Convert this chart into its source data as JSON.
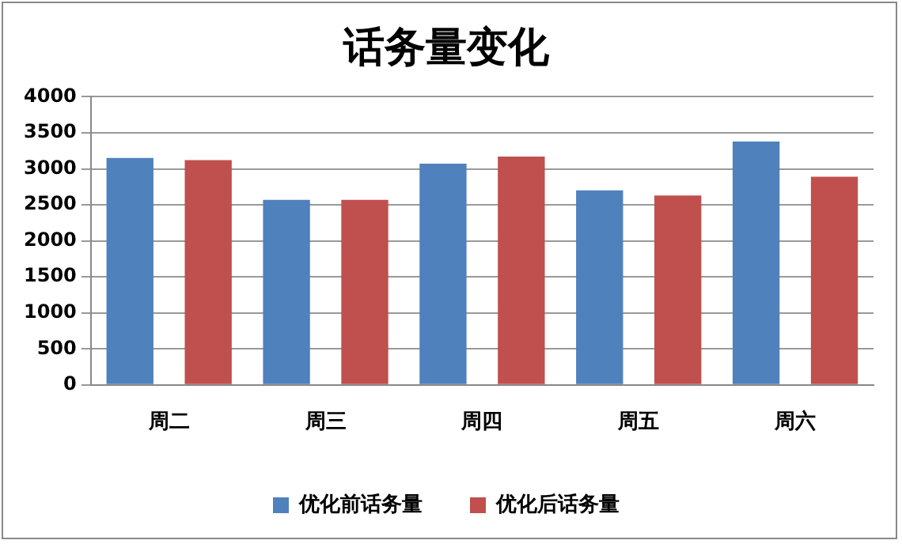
{
  "chart_data": {
    "type": "bar",
    "title": "话务量变化",
    "categories": [
      "周二",
      "周三",
      "周四",
      "周五",
      "周六"
    ],
    "series": [
      {
        "name": "优化前话务量",
        "color": "#4f81bd",
        "values": [
          3150,
          2570,
          3070,
          2700,
          3380
        ]
      },
      {
        "name": "优化后话务量",
        "color": "#c0504d",
        "values": [
          3120,
          2570,
          3170,
          2630,
          2890
        ]
      }
    ],
    "ylim": [
      0,
      4000
    ],
    "yticks": [
      0,
      500,
      1000,
      1500,
      2000,
      2500,
      3000,
      3500,
      4000
    ],
    "grid": "y",
    "legend": "bottom"
  }
}
